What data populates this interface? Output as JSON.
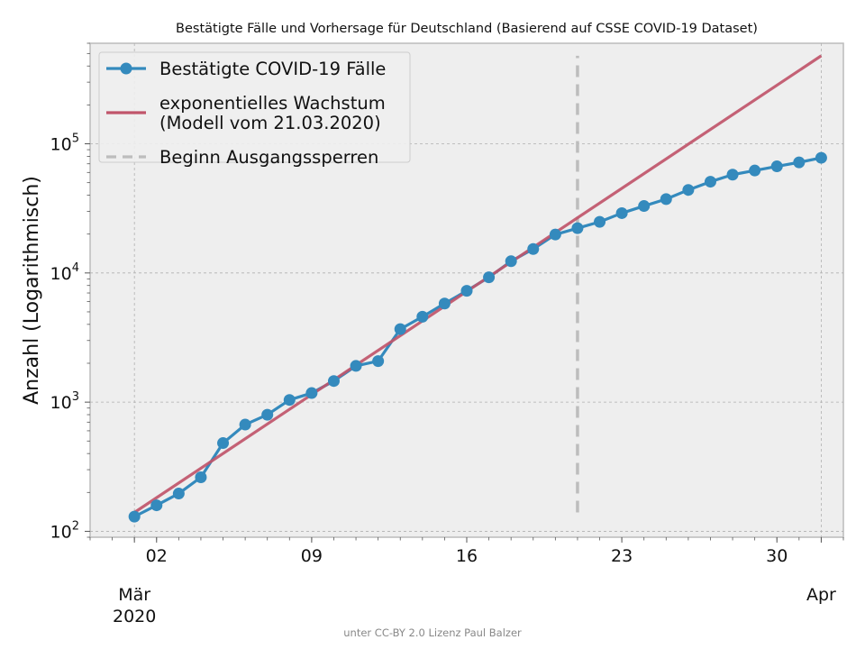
{
  "chart_data": {
    "type": "line",
    "title": "Bestätigte Fälle und Vorhersage für Deutschland (Basierend auf CSSE COVID-19 Dataset)",
    "ylabel": "Anzahl (Logarithmisch)",
    "xlabel": "",
    "yscale": "log",
    "ylim": [
      90,
      600000
    ],
    "xlim": [
      "2020-02-28",
      "2020-04-02"
    ],
    "y_ticks": [
      {
        "value": 100,
        "base": "10",
        "exp": "2"
      },
      {
        "value": 1000,
        "base": "10",
        "exp": "3"
      },
      {
        "value": 10000,
        "base": "10",
        "exp": "4"
      },
      {
        "value": 100000,
        "base": "10",
        "exp": "5"
      }
    ],
    "x_ticks": [
      {
        "date": "2020-03-02",
        "label": "02"
      },
      {
        "date": "2020-03-09",
        "label": "09"
      },
      {
        "date": "2020-03-16",
        "label": "16"
      },
      {
        "date": "2020-03-23",
        "label": "23"
      },
      {
        "date": "2020-03-30",
        "label": "30"
      }
    ],
    "x_major_ticks": [
      {
        "date": "2020-03-01",
        "label1": "Mär",
        "label2": "2020"
      },
      {
        "date": "2020-04-01",
        "label1": "Apr",
        "label2": ""
      }
    ],
    "grid": true,
    "legend": {
      "position": "top-left"
    },
    "series": [
      {
        "name": "Bestätigte COVID-19 Fälle",
        "kind": "line-marker",
        "color": "#348abd",
        "x": [
          "2020-03-01",
          "2020-03-02",
          "2020-03-03",
          "2020-03-04",
          "2020-03-05",
          "2020-03-06",
          "2020-03-07",
          "2020-03-08",
          "2020-03-09",
          "2020-03-10",
          "2020-03-11",
          "2020-03-12",
          "2020-03-13",
          "2020-03-14",
          "2020-03-15",
          "2020-03-16",
          "2020-03-17",
          "2020-03-18",
          "2020-03-19",
          "2020-03-20",
          "2020-03-21",
          "2020-03-22",
          "2020-03-23",
          "2020-03-24",
          "2020-03-25",
          "2020-03-26",
          "2020-03-27",
          "2020-03-28",
          "2020-03-29",
          "2020-03-30",
          "2020-03-31",
          "2020-04-01"
        ],
        "values": [
          130,
          159,
          196,
          262,
          482,
          670,
          799,
          1040,
          1176,
          1457,
          1908,
          2078,
          3675,
          4585,
          5795,
          7272,
          9257,
          12327,
          15320,
          19848,
          22213,
          24873,
          29056,
          32986,
          37323,
          43938,
          50871,
          57695,
          62095,
          66885,
          71808,
          77872
        ]
      },
      {
        "name": "exponentielles Wachstum\n(Modell vom 21.03.2020)",
        "kind": "line",
        "color": "#c0556a",
        "x": [
          "2020-03-01",
          "2020-04-01"
        ],
        "values": [
          140,
          480000
        ]
      },
      {
        "name": "Beginn Ausgangssperren",
        "kind": "vline-dashed",
        "color": "#bdbdbd",
        "x": [
          "2020-03-21"
        ],
        "y_range": [
          140,
          480000
        ]
      }
    ],
    "footer": "unter CC-BY 2.0 Lizenz Paul Balzer"
  }
}
